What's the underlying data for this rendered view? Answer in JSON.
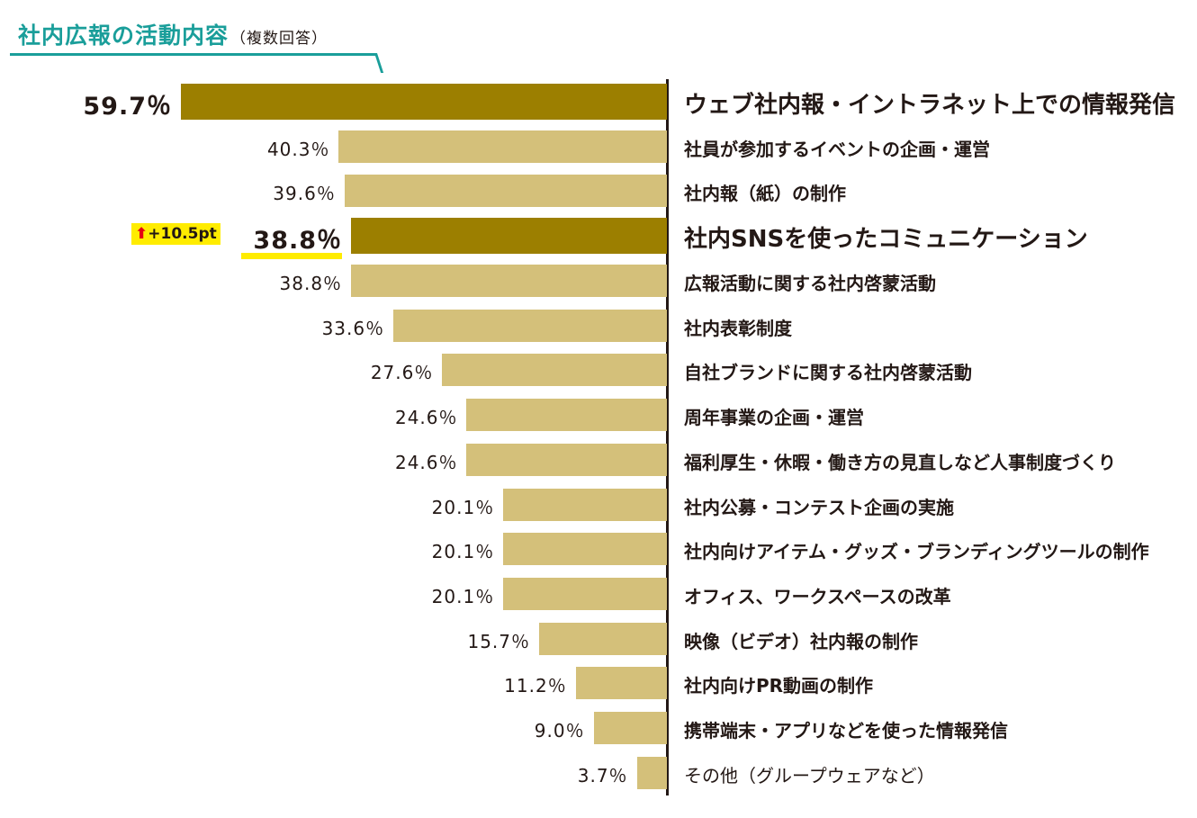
{
  "chart_data": {
    "type": "bar",
    "orientation": "horizontal",
    "title": "社内広報の活動内容",
    "subtitle": "（複数回答）",
    "unit": "%",
    "xlim": [
      0,
      59.7
    ],
    "grid": false,
    "colors": {
      "title": "#1a9e9a",
      "highlight_bar": "#9c7f00",
      "bar": "#d4c07a",
      "badge": "#ffec00",
      "arrow": "#e60012"
    },
    "categories": [
      "ウェブ社内報・イントラネット上での情報発信",
      "社員が参加するイベントの企画・運営",
      "社内報（紙）の制作",
      "社内SNSを使ったコミュニケーション",
      "広報活動に関する社内啓蒙活動",
      "社内表彰制度",
      "自社ブランドに関する社内啓蒙活動",
      "周年事業の企画・運営",
      "福利厚生・休暇・働き方の見直しなど人事制度づくり",
      "社内公募・コンテスト企画の実施",
      "社内向けアイテム・グッズ・ブランディングツールの制作",
      "オフィス、ワークスペースの改革",
      "映像（ビデオ）社内報の制作",
      "社内向けPR動画の制作",
      "携帯端末・アプリなどを使った情報発信",
      "その他（グループウェアなど）"
    ],
    "values": [
      59.7,
      40.3,
      39.6,
      38.8,
      38.8,
      33.6,
      27.6,
      24.6,
      24.6,
      20.1,
      20.1,
      20.1,
      15.7,
      11.2,
      9.0,
      3.7
    ],
    "value_labels": [
      "59.7％",
      "40.3％",
      "39.6％",
      "38.8％",
      "38.8％",
      "33.6％",
      "27.6％",
      "24.6％",
      "24.6％",
      "20.1％",
      "20.1％",
      "20.1％",
      "15.7％",
      "11.2％",
      "9.0％",
      "3.7％"
    ],
    "highlighted": [
      0,
      3
    ],
    "annotation": {
      "index": 3,
      "arrow": "arrow-up-icon",
      "text": "+10.5pt"
    }
  }
}
